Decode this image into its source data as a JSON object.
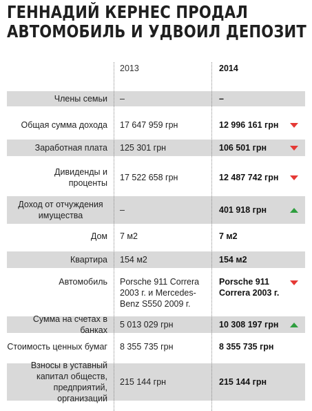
{
  "title_line1": "ГЕННАДИЙ КЕРНЕС ПРОДАЛ",
  "title_line2": "АВТОМОБИЛЬ И УДВОИЛ ДЕПОЗИТ",
  "columns": {
    "y2013": "2013",
    "y2014": "2014"
  },
  "colors": {
    "down": "#e53935",
    "up": "#2e9e3e",
    "shade": "#d9d9d9"
  },
  "rows": [
    {
      "label": "Члены семьи",
      "v2013": "–",
      "v2014": "–",
      "trend": "none"
    },
    {
      "label": "Общая сумма дохода",
      "v2013": "17 647 959 грн",
      "v2014": "12 996 161 грн",
      "trend": "down"
    },
    {
      "label": "Заработная плата",
      "v2013": "125 301 грн",
      "v2014": "106 501 грн",
      "trend": "down"
    },
    {
      "label": "Дивиденды и проценты",
      "v2013": "17 522 658 грн",
      "v2014": "12 487 742 грн",
      "trend": "down"
    },
    {
      "label": "Доход от отчуждения имущества",
      "v2013": "–",
      "v2014": "401 918 грн",
      "trend": "up"
    },
    {
      "label": "Дом",
      "v2013": "7 м2",
      "v2014": "7 м2",
      "trend": "none"
    },
    {
      "label": "Квартира",
      "v2013": "154 м2",
      "v2014": "154 м2",
      "trend": "none"
    },
    {
      "label": "Автомобиль",
      "v2013": "Porsche 911 Correra 2003 г. и Mercedes-Benz S550 2009 г.",
      "v2014": "Porsche 911 Correra 2003 г.",
      "trend": "down"
    },
    {
      "label": "Сумма на счетах в банках",
      "v2013": "5 013 029 грн",
      "v2014": "10 308 197 грн",
      "trend": "up"
    },
    {
      "label": "Стоимость ценных бумаг",
      "v2013": "8 355 735 грн",
      "v2014": "8 355 735 грн",
      "trend": "none"
    },
    {
      "label": "Взносы в уставный капитал обществ, предприятий, организаций",
      "v2013": "215 144 грн",
      "v2014": "215 144 грн",
      "trend": "none"
    }
  ]
}
